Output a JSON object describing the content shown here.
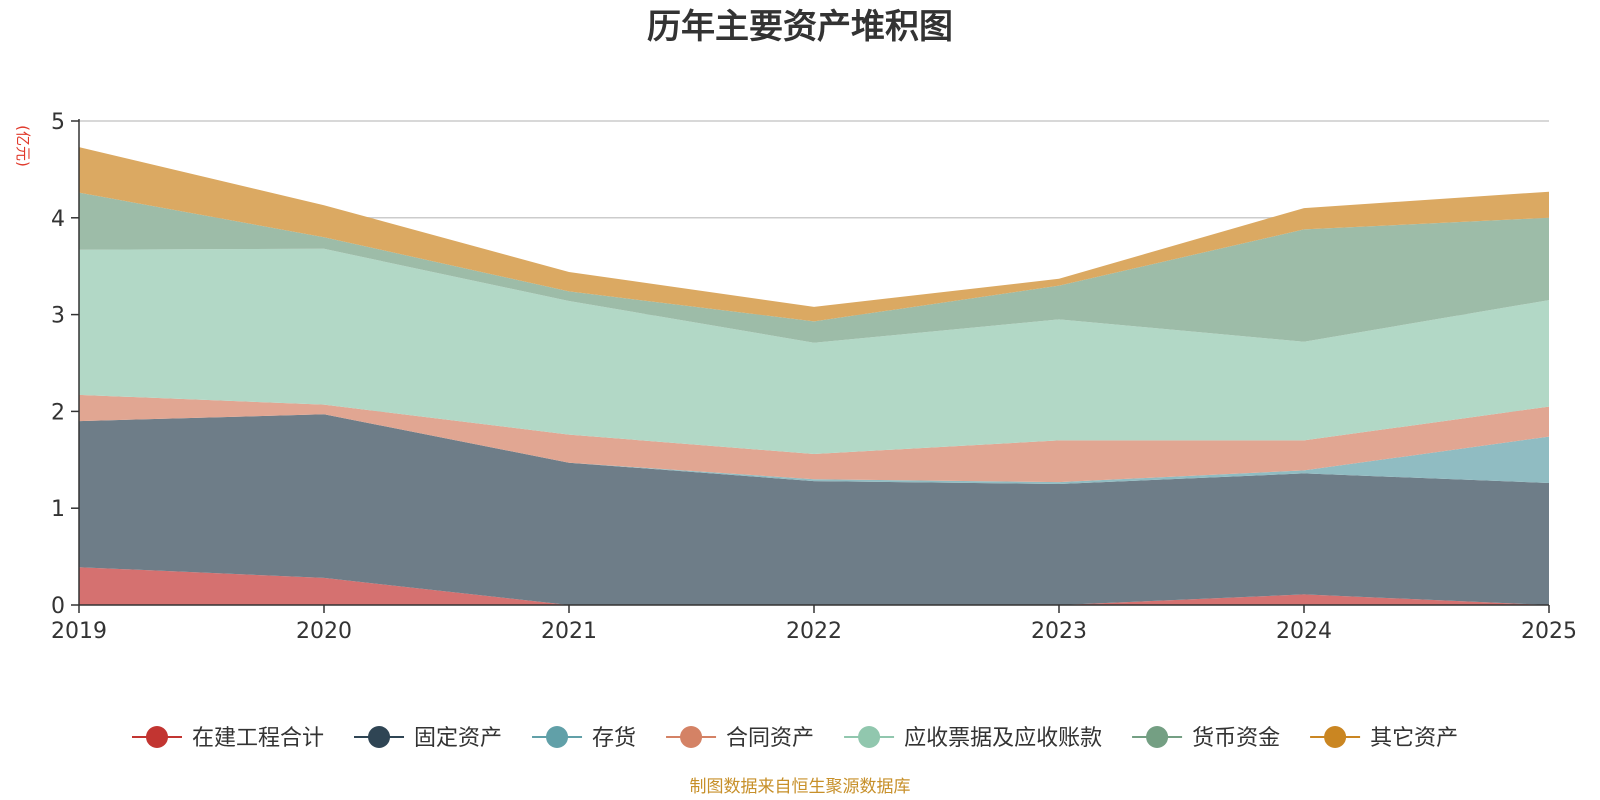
{
  "chart_data": {
    "type": "area",
    "stacked": true,
    "title": "历年主要资产堆积图",
    "ylabel": "(亿元)",
    "xlabel": "",
    "x": [
      "2019",
      "2020",
      "2021",
      "2022",
      "2023",
      "2024",
      "2025"
    ],
    "ylim": [
      0,
      5
    ],
    "yticks": [
      "0",
      "1",
      "2",
      "3",
      "4",
      "5"
    ],
    "grid": true,
    "legend_position": "bottom",
    "series": [
      {
        "name": "在建工程合计",
        "color": "#c23531",
        "fill": "#d57170",
        "values": [
          0.39,
          0.28,
          0.0,
          0.0,
          0.0,
          0.11,
          0.0
        ]
      },
      {
        "name": "固定资产",
        "color": "#2f4554",
        "fill": "#6e7d88",
        "values": [
          1.51,
          1.69,
          1.47,
          1.28,
          1.25,
          1.25,
          1.26
        ]
      },
      {
        "name": "存货",
        "color": "#61a0a8",
        "fill": "#90bcc2",
        "values": [
          0.0,
          0.0,
          0.0,
          0.02,
          0.02,
          0.03,
          0.48
        ]
      },
      {
        "name": "合同资产",
        "color": "#d48265",
        "fill": "#e1a692",
        "values": [
          0.27,
          0.1,
          0.29,
          0.26,
          0.43,
          0.31,
          0.31
        ]
      },
      {
        "name": "应收票据及应收账款",
        "color": "#91c7ae",
        "fill": "#b2d8c6",
        "values": [
          1.5,
          1.61,
          1.38,
          1.15,
          1.25,
          1.02,
          1.1
        ]
      },
      {
        "name": "货币资金",
        "color": "#749f83",
        "fill": "#9dbca8",
        "values": [
          0.59,
          0.12,
          0.1,
          0.22,
          0.35,
          1.16,
          0.85
        ]
      },
      {
        "name": "其它资产",
        "color": "#ca8622",
        "fill": "#dba962",
        "values": [
          0.47,
          0.33,
          0.2,
          0.15,
          0.07,
          0.22,
          0.27
        ]
      }
    ]
  },
  "footer": {
    "source": "制图数据来自恒生聚源数据库"
  },
  "colors": {
    "title": "#333333",
    "axis": "#333333",
    "grid": "#cccccc",
    "unit": "#e0392b",
    "source": "#c7902a"
  }
}
